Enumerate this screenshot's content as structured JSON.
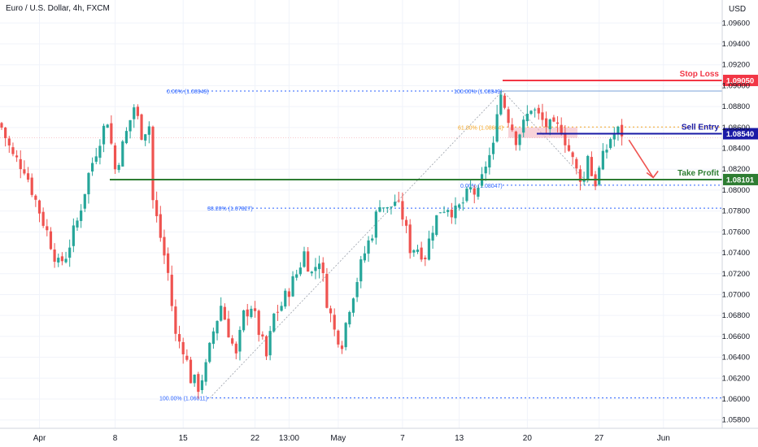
{
  "title": "Euro / U.S. Dollar, 4h, FXCM",
  "currency": "USD",
  "colors": {
    "up": "#26a69a",
    "down": "#ef5350",
    "fib_line": "#2962ff",
    "stop_loss": "#f23645",
    "sell_entry": "#1a1aa6",
    "take_profit": "#2e7d32",
    "grid": "#f0f3fa",
    "axis_text": "#131722",
    "zone": "#f4b6bf"
  },
  "chart_data": {
    "type": "candlestick",
    "title": "Euro / U.S. Dollar, 4h, FXCM",
    "ylim": [
      1.0572,
      1.0982
    ],
    "y_ticks": [
      "1.09600",
      "1.09400",
      "1.09200",
      "1.09000",
      "1.08800",
      "1.08600",
      "1.08400",
      "1.08200",
      "1.08000",
      "1.07800",
      "1.07600",
      "1.07400",
      "1.07200",
      "1.07000",
      "1.06800",
      "1.06600",
      "1.06400",
      "1.06200",
      "1.06000",
      "1.05800"
    ],
    "y_tick_values": [
      1.096,
      1.094,
      1.092,
      1.09,
      1.088,
      1.086,
      1.084,
      1.082,
      1.08,
      1.078,
      1.076,
      1.074,
      1.072,
      1.07,
      1.068,
      1.066,
      1.064,
      1.062,
      1.06,
      1.058
    ],
    "x_ticks": [
      "Apr",
      "8",
      "15",
      "22",
      "13:00",
      "May",
      "7",
      "13",
      "20",
      "27",
      "Jun"
    ],
    "x_tick_index": [
      10,
      30,
      48,
      67,
      76,
      89,
      106,
      121,
      139,
      158,
      175
    ],
    "grid": true,
    "levels": [
      {
        "name": "Stop Loss",
        "value": 1.0905,
        "label": "1.09050",
        "key": "stop_loss"
      },
      {
        "name": "Sell Entry",
        "value": 1.0854,
        "label": "1.08540",
        "key": "sell_entry"
      },
      {
        "name": "Take Profit",
        "value": 1.08101,
        "label": "1.08101",
        "key": "take_profit"
      }
    ],
    "fib_retracements": [
      {
        "label": "0.00% (1.08949)",
        "value": 1.08949
      },
      {
        "label": "38.20% (1.07827)",
        "value": 1.07827
      },
      {
        "label": "100.00% (1.06011)",
        "value": 1.06011
      },
      {
        "label": "100.00% (1.08949)",
        "value": 1.08949
      },
      {
        "label": "61.80% (1.08604)",
        "value": 1.08604
      },
      {
        "label": "0.00% (1.08047)",
        "value": 1.08047
      }
    ],
    "anchors": [
      [
        0,
        1.086
      ],
      [
        3,
        1.0832
      ],
      [
        6,
        1.0822
      ],
      [
        9,
        1.079
      ],
      [
        12,
        1.076
      ],
      [
        15,
        1.0728
      ],
      [
        17,
        1.0738
      ],
      [
        20,
        1.077
      ],
      [
        23,
        1.0815
      ],
      [
        26,
        1.085
      ],
      [
        28,
        1.0868
      ],
      [
        30,
        1.082
      ],
      [
        32,
        1.0842
      ],
      [
        35,
        1.088
      ],
      [
        37,
        1.0855
      ],
      [
        39,
        1.0862
      ],
      [
        40,
        1.079
      ],
      [
        42,
        1.0755
      ],
      [
        44,
        1.072
      ],
      [
        46,
        1.066
      ],
      [
        48,
        1.065
      ],
      [
        50,
        1.062
      ],
      [
        52,
        1.0612
      ],
      [
        54,
        1.063
      ],
      [
        56,
        1.0665
      ],
      [
        58,
        1.069
      ],
      [
        60,
        1.0665
      ],
      [
        62,
        1.064
      ],
      [
        64,
        1.068
      ],
      [
        66,
        1.069
      ],
      [
        68,
        1.0665
      ],
      [
        70,
        1.064
      ],
      [
        72,
        1.068
      ],
      [
        74,
        1.069
      ],
      [
        76,
        1.0705
      ],
      [
        78,
        1.072
      ],
      [
        80,
        1.074
      ],
      [
        82,
        1.072
      ],
      [
        84,
        1.0735
      ],
      [
        86,
        1.0695
      ],
      [
        88,
        1.0665
      ],
      [
        90,
        1.0655
      ],
      [
        92,
        1.069
      ],
      [
        94,
        1.0715
      ],
      [
        96,
        1.074
      ],
      [
        98,
        1.076
      ],
      [
        100,
        1.079
      ],
      [
        102,
        1.078
      ],
      [
        104,
        1.079
      ],
      [
        106,
        1.0775
      ],
      [
        108,
        1.0745
      ],
      [
        110,
        1.0745
      ],
      [
        112,
        1.0738
      ],
      [
        114,
        1.0765
      ],
      [
        116,
        1.0782
      ],
      [
        118,
        1.0785
      ],
      [
        120,
        1.0778
      ],
      [
        122,
        1.0788
      ],
      [
        124,
        1.08
      ],
      [
        126,
        1.0795
      ],
      [
        128,
        1.0825
      ],
      [
        130,
        1.084
      ],
      [
        131,
        1.088
      ],
      [
        132,
        1.0892
      ],
      [
        134,
        1.087
      ],
      [
        136,
        1.085
      ],
      [
        138,
        1.0862
      ],
      [
        140,
        1.088
      ],
      [
        142,
        1.087
      ],
      [
        144,
        1.0862
      ],
      [
        146,
        1.0858
      ],
      [
        148,
        1.086
      ],
      [
        150,
        1.0838
      ],
      [
        152,
        1.0818
      ],
      [
        154,
        1.081
      ],
      [
        155,
        1.0836
      ],
      [
        156,
        1.0815
      ],
      [
        157,
        1.0808
      ],
      [
        159,
        1.083
      ],
      [
        161,
        1.085
      ],
      [
        163,
        1.0856
      ],
      [
        164,
        1.0855
      ]
    ],
    "last_index": 164,
    "forecast_arrow": {
      "from_index": 165,
      "from_value": 1.0848,
      "to_index": 171,
      "to_value": 1.0812
    }
  }
}
